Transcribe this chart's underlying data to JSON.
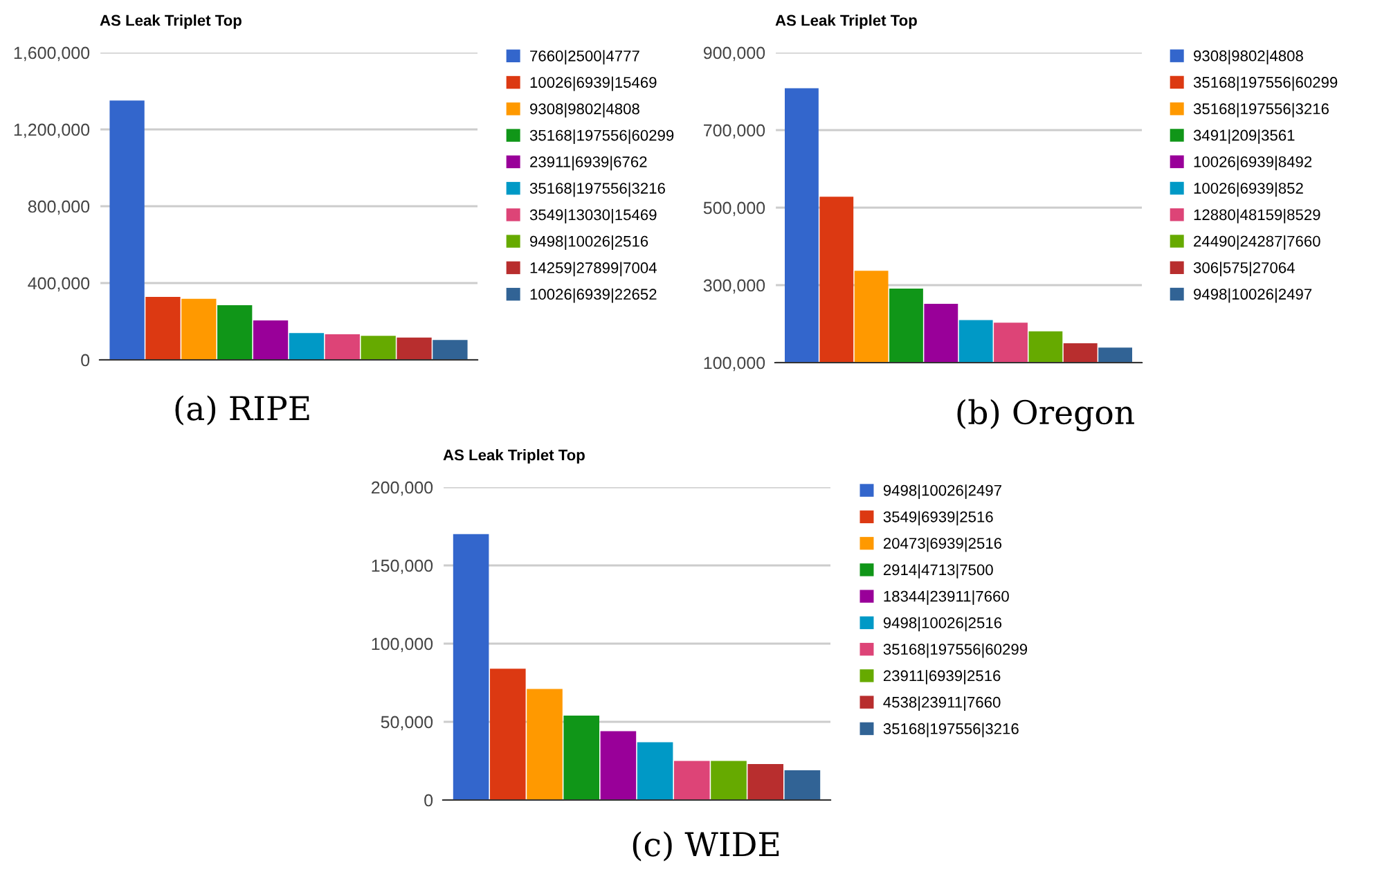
{
  "chart_data": [
    {
      "type": "bar",
      "title": "AS Leak Triplet Top",
      "categories": [
        null
      ],
      "legend": "right",
      "grid": "y",
      "ylim": [
        0,
        1600000
      ],
      "yticks": [
        {
          "value": 0,
          "label": "0"
        },
        {
          "value": 400000,
          "label": "400,000"
        },
        {
          "value": 800000,
          "label": "800,000"
        },
        {
          "value": 1200000,
          "label": "1,200,000"
        },
        {
          "value": 1600000,
          "label": "1,600,000"
        }
      ],
      "annotations": [
        "(a) RIPE"
      ],
      "series": [
        {
          "name": "7660|2500|4777",
          "color": "#3366cc",
          "values": [
            1350000
          ]
        },
        {
          "name": "10026|6939|15469",
          "color": "#dc3912",
          "values": [
            328000
          ]
        },
        {
          "name": "9308|9802|4808",
          "color": "#ff9900",
          "values": [
            318000
          ]
        },
        {
          "name": "35168|197556|60299",
          "color": "#109618",
          "values": [
            285000
          ]
        },
        {
          "name": "23911|6939|6762",
          "color": "#990099",
          "values": [
            205000
          ]
        },
        {
          "name": "35168|197556|3216",
          "color": "#0099c6",
          "values": [
            140000
          ]
        },
        {
          "name": "3549|13030|15469",
          "color": "#dd4477",
          "values": [
            133000
          ]
        },
        {
          "name": "9498|10026|2516",
          "color": "#66aa00",
          "values": [
            125000
          ]
        },
        {
          "name": "14259|27899|7004",
          "color": "#b82e2e",
          "values": [
            116000
          ]
        },
        {
          "name": "10026|6939|22652",
          "color": "#316395",
          "values": [
            104000
          ]
        }
      ]
    },
    {
      "type": "bar",
      "title": "AS Leak Triplet Top",
      "categories": [
        null
      ],
      "legend": "right",
      "grid": "y",
      "ylim": [
        100000,
        900000
      ],
      "yticks": [
        {
          "value": 100000,
          "label": "100,000"
        },
        {
          "value": 300000,
          "label": "300,000"
        },
        {
          "value": 500000,
          "label": "500,000"
        },
        {
          "value": 700000,
          "label": "700,000"
        },
        {
          "value": 900000,
          "label": "900,000"
        }
      ],
      "annotations": [
        "(b) Oregon"
      ],
      "series": [
        {
          "name": "9308|9802|4808",
          "color": "#3366cc",
          "values": [
            808000
          ]
        },
        {
          "name": "35168|197556|60299",
          "color": "#dc3912",
          "values": [
            528000
          ]
        },
        {
          "name": "35168|197556|3216",
          "color": "#ff9900",
          "values": [
            337000
          ]
        },
        {
          "name": "3491|209|3561",
          "color": "#109618",
          "values": [
            291000
          ]
        },
        {
          "name": "10026|6939|8492",
          "color": "#990099",
          "values": [
            252000
          ]
        },
        {
          "name": "10026|6939|852",
          "color": "#0099c6",
          "values": [
            210000
          ]
        },
        {
          "name": "12880|48159|8529",
          "color": "#dd4477",
          "values": [
            203000
          ]
        },
        {
          "name": "24490|24287|7660",
          "color": "#66aa00",
          "values": [
            181000
          ]
        },
        {
          "name": "306|575|27064",
          "color": "#b82e2e",
          "values": [
            150000
          ]
        },
        {
          "name": "9498|10026|2497",
          "color": "#316395",
          "values": [
            139000
          ]
        }
      ]
    },
    {
      "type": "bar",
      "title": "AS Leak Triplet Top",
      "categories": [
        null
      ],
      "legend": "right",
      "grid": "y",
      "ylim": [
        0,
        200000
      ],
      "yticks": [
        {
          "value": 0,
          "label": "0"
        },
        {
          "value": 50000,
          "label": "50,000"
        },
        {
          "value": 100000,
          "label": "100,000"
        },
        {
          "value": 150000,
          "label": "150,000"
        },
        {
          "value": 200000,
          "label": "200,000"
        }
      ],
      "annotations": [
        "(c) WIDE"
      ],
      "series": [
        {
          "name": "9498|10026|2497",
          "color": "#3366cc",
          "values": [
            170000
          ]
        },
        {
          "name": "3549|6939|2516",
          "color": "#dc3912",
          "values": [
            84000
          ]
        },
        {
          "name": "20473|6939|2516",
          "color": "#ff9900",
          "values": [
            71000
          ]
        },
        {
          "name": "2914|4713|7500",
          "color": "#109618",
          "values": [
            54000
          ]
        },
        {
          "name": "18344|23911|7660",
          "color": "#990099",
          "values": [
            44000
          ]
        },
        {
          "name": "9498|10026|2516",
          "color": "#0099c6",
          "values": [
            37000
          ]
        },
        {
          "name": "35168|197556|60299",
          "color": "#dd4477",
          "values": [
            25000
          ]
        },
        {
          "name": "23911|6939|2516",
          "color": "#66aa00",
          "values": [
            25000
          ]
        },
        {
          "name": "4538|23911|7660",
          "color": "#b82e2e",
          "values": [
            23000
          ]
        },
        {
          "name": "35168|197556|3216",
          "color": "#316395",
          "values": [
            19000
          ]
        }
      ]
    }
  ]
}
